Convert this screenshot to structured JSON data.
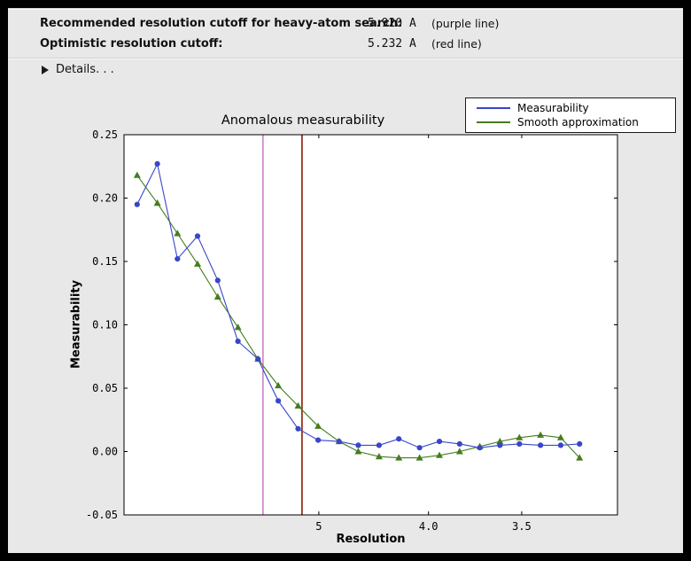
{
  "header": {
    "rows": [
      {
        "label": "Recommended resolution cutoff for heavy-atom search:",
        "value": "5.920 A",
        "note": "(purple line)"
      },
      {
        "label": "Optimistic resolution cutoff:",
        "value": "5.232 A",
        "note": "(red line)"
      }
    ],
    "details_label": "Details. . ."
  },
  "chart_data": {
    "type": "line",
    "title": "Anomalous measurability",
    "xlabel": "Resolution",
    "ylabel": "Measurability",
    "x_axis_note": "resolution in Angstrom plotted as 1/d^2, d decreasing left to right",
    "xlim_s": [
      0.0,
      0.1013
    ],
    "ylim": [
      -0.05,
      0.25
    ],
    "grid": false,
    "legend_position": "top-right above axes",
    "x_resolution_A": [
      19.3,
      12.1,
      9.55,
      8.14,
      7.21,
      6.54,
      6.03,
      5.62,
      5.29,
      5.01,
      4.76,
      4.56,
      4.37,
      4.21,
      4.06,
      3.93,
      3.81,
      3.7,
      3.6,
      3.51,
      3.42,
      3.34,
      3.27
    ],
    "series": [
      {
        "name": "Measurability",
        "color": "#3846c8",
        "marker": "circle",
        "values": [
          0.195,
          0.227,
          0.152,
          0.17,
          0.135,
          0.087,
          0.073,
          0.04,
          0.018,
          0.009,
          0.008,
          0.005,
          0.005,
          0.01,
          0.003,
          0.008,
          0.006,
          0.003,
          0.005,
          0.006,
          0.005,
          0.005,
          0.006
        ]
      },
      {
        "name": "Smooth approximation",
        "color": "#457d1e",
        "marker": "triangle",
        "values": [
          0.218,
          0.196,
          0.172,
          0.148,
          0.122,
          0.098,
          0.073,
          0.052,
          0.036,
          0.02,
          0.008,
          0.0,
          -0.004,
          -0.005,
          -0.005,
          -0.003,
          0.0,
          0.004,
          0.008,
          0.011,
          0.013,
          0.011,
          -0.005
        ]
      }
    ],
    "vlines": [
      {
        "name": "recommended-cutoff-line",
        "resolution_A": 5.92,
        "color": "#bb55bb"
      },
      {
        "name": "optimistic-cutoff-line",
        "resolution_A": 5.232,
        "color": "#993322"
      }
    ],
    "x_ticks": [
      {
        "label": "5",
        "resolution_A": 5.0
      },
      {
        "label": "4.0",
        "resolution_A": 4.0
      },
      {
        "label": "3.5",
        "resolution_A": 3.5
      }
    ],
    "y_ticks": [
      {
        "label": "-0.05",
        "value": -0.05
      },
      {
        "label": "0.00",
        "value": 0.0
      },
      {
        "label": "0.05",
        "value": 0.05
      },
      {
        "label": "0.10",
        "value": 0.1
      },
      {
        "label": "0.15",
        "value": 0.15
      },
      {
        "label": "0.20",
        "value": 0.2
      },
      {
        "label": "0.25",
        "value": 0.25
      }
    ]
  }
}
